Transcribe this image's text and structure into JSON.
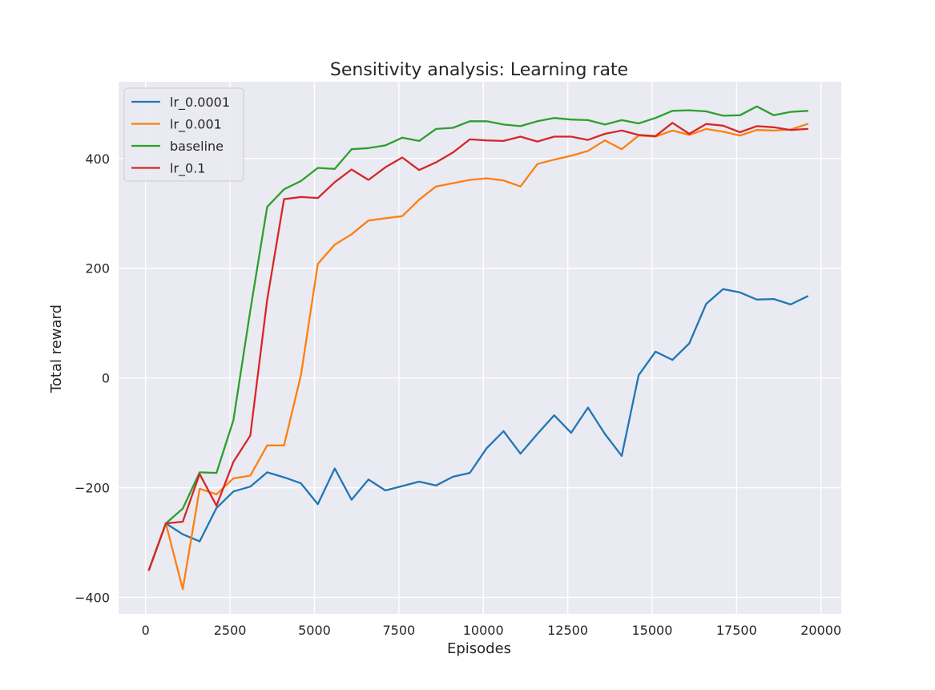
{
  "chart_data": {
    "type": "line",
    "title": "Sensitivity analysis: Learning rate",
    "xlabel": "Episodes",
    "ylabel": "Total reward",
    "xlim": [
      -800,
      20600
    ],
    "ylim": [
      -430,
      540
    ],
    "xticks": [
      0,
      2500,
      5000,
      7500,
      10000,
      12500,
      15000,
      17500,
      20000
    ],
    "xtick_labels": [
      "0",
      "2500",
      "5000",
      "7500",
      "10000",
      "12500",
      "15000",
      "17500",
      "20000"
    ],
    "yticks": [
      -400,
      -200,
      0,
      200,
      400
    ],
    "ytick_labels": [
      "−400",
      "−200",
      "0",
      "200",
      "400"
    ],
    "grid": true,
    "legend_position": "upper-left",
    "x": [
      100,
      600,
      1100,
      1600,
      2100,
      2600,
      3100,
      3600,
      4100,
      4600,
      5100,
      5600,
      6100,
      6600,
      7100,
      7600,
      8100,
      8600,
      9100,
      9600,
      10100,
      10600,
      11100,
      11600,
      12100,
      12600,
      13100,
      13600,
      14100,
      14600,
      15100,
      15600,
      16100,
      16600,
      17100,
      17600,
      18100,
      18600,
      19100,
      19600
    ],
    "series": [
      {
        "name": "lr_0.0001",
        "color": "#1f77b4",
        "values": [
          -350,
          -265,
          -285,
          -298,
          -237,
          -207,
          -198,
          -172,
          -181,
          -192,
          -230,
          -165,
          -222,
          -185,
          -205,
          -197,
          -189,
          -196,
          -180,
          -173,
          -128,
          -97,
          -138,
          -102,
          -68,
          -100,
          -54,
          -102,
          -142,
          5,
          48,
          33,
          63,
          135,
          162,
          156,
          143,
          144,
          134,
          149
        ]
      },
      {
        "name": "lr_0.001",
        "color": "#ff7f0e",
        "values": [
          -350,
          -265,
          -385,
          -202,
          -212,
          -183,
          -178,
          -123,
          -123,
          5,
          208,
          243,
          262,
          287,
          291,
          295,
          325,
          349,
          355,
          361,
          364,
          360,
          349,
          390,
          398,
          405,
          414,
          433,
          417,
          442,
          440,
          451,
          443,
          454,
          449,
          442,
          452,
          451,
          453,
          463
        ]
      },
      {
        "name": "baseline",
        "color": "#2ca02c",
        "values": [
          -350,
          -265,
          -238,
          -172,
          -173,
          -77,
          123,
          312,
          344,
          359,
          383,
          381,
          417,
          419,
          424,
          438,
          432,
          454,
          456,
          468,
          468,
          462,
          459,
          468,
          474,
          471,
          470,
          462,
          470,
          464,
          474,
          487,
          488,
          486,
          478,
          479,
          495,
          479,
          485,
          487
        ]
      },
      {
        "name": "lr_0.1",
        "color": "#d62728",
        "values": [
          -350,
          -265,
          -262,
          -175,
          -233,
          -153,
          -105,
          143,
          326,
          330,
          328,
          357,
          380,
          361,
          384,
          402,
          379,
          393,
          411,
          435,
          433,
          432,
          440,
          431,
          440,
          440,
          434,
          445,
          451,
          443,
          441,
          465,
          445,
          463,
          460,
          448,
          459,
          457,
          452,
          454
        ]
      }
    ]
  }
}
